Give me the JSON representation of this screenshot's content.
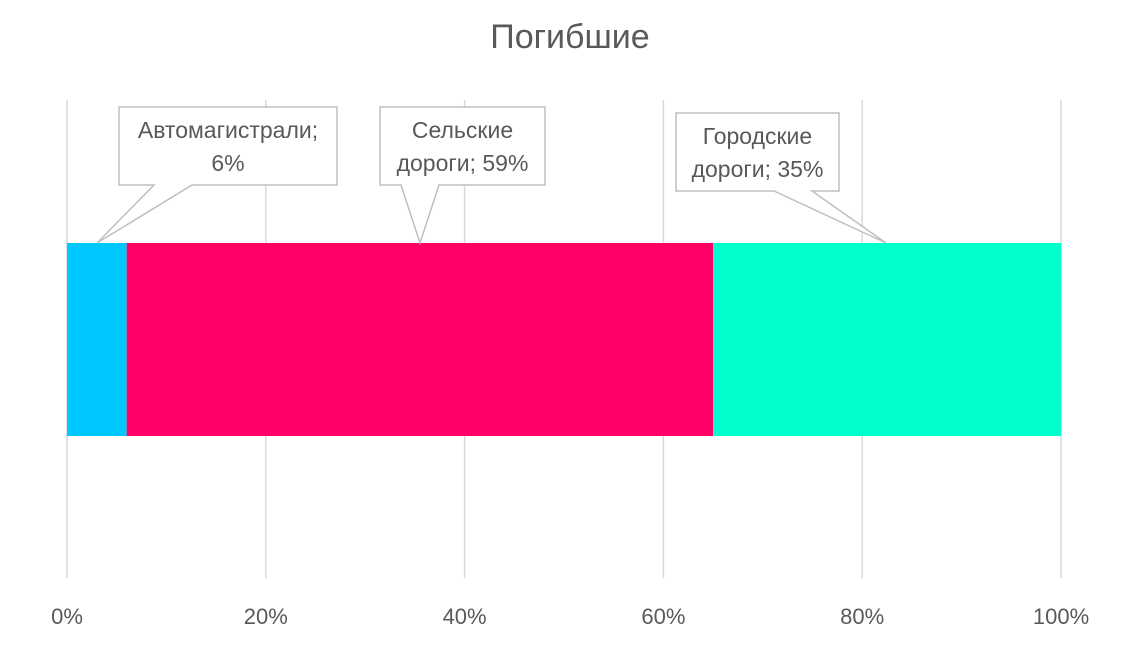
{
  "chart_data": {
    "type": "bar",
    "orientation": "horizontal",
    "stacked": "100%",
    "title": "Погибшие",
    "xlim": [
      0,
      100
    ],
    "x_ticks": [
      "0%",
      "20%",
      "40%",
      "60%",
      "80%",
      "100%"
    ],
    "grid": true,
    "legend": "none",
    "series": [
      {
        "name": "Автомагистрали",
        "value": 6,
        "color": "#00C8FF",
        "label_lines": [
          "Автомагистрали;",
          "6%"
        ]
      },
      {
        "name": "Сельские дороги",
        "value": 59,
        "color": "#FF0066",
        "label_lines": [
          "Сельские",
          "дороги; 59%"
        ]
      },
      {
        "name": "Городские дороги",
        "value": 35,
        "color": "#00FFCC",
        "label_lines": [
          "Городские",
          "дороги; 35%"
        ]
      }
    ]
  }
}
